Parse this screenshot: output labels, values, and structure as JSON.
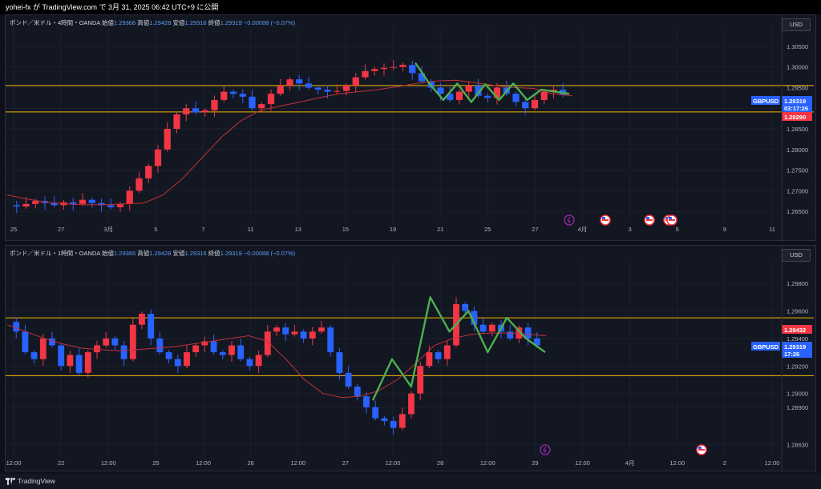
{
  "header": {
    "publish_text": "yohei-fx が TradingView.com で 3月 31, 2025 06:42 UTC+9 に公開"
  },
  "footer": {
    "brand": "TradingView"
  },
  "colors": {
    "bull": "#f23645",
    "bear": "#2962ff",
    "ma": "#c2313a",
    "wave": "#4caf50",
    "hline": "#f5b800",
    "bg": "#131722",
    "grid": "#1c2030"
  },
  "icons": [
    "lightning-icon",
    "us-flag-icon",
    "tradingview-logo-icon"
  ],
  "chart_data": [
    {
      "type": "candlestick",
      "symbol_line": {
        "name": "ポンド／米ドル・4時間・OANDA",
        "open_label": "始値",
        "open": "1.29366",
        "high_label": "高値",
        "high": "1.29428",
        "low_label": "安値",
        "low": "1.29316",
        "close_label": "終値",
        "close": "1.29319",
        "change": "−0.00088 (−0.07%)"
      },
      "currency_button": "USD",
      "ylim": [
        1.2625,
        1.3075
      ],
      "y_ticks": [
        "1.30500",
        "1.30000",
        "1.29500",
        "1.29000",
        "1.28500",
        "1.28000",
        "1.27500",
        "1.27000",
        "1.26500"
      ],
      "x_ticks": [
        "25",
        "27",
        "3月",
        "5",
        "7",
        "11",
        "13",
        "15",
        "19",
        "21",
        "25",
        "27",
        "4月",
        "3",
        "5",
        "9",
        "11"
      ],
      "horizontal_lines": [
        1.2955,
        1.2891
      ],
      "price_tags": [
        {
          "label": "GBPUSD",
          "value": "1.29319",
          "sub": "03:17:26",
          "color": "#2962ff"
        },
        {
          "label": "",
          "value": "1.29290",
          "color": "#f23645"
        }
      ],
      "ohlc_path": [
        1.2665,
        1.2662,
        1.2668,
        1.2675,
        1.267,
        1.2665,
        1.2672,
        1.2668,
        1.2678,
        1.267,
        1.2665,
        1.266,
        1.2668,
        1.27,
        1.273,
        1.276,
        1.28,
        1.285,
        1.2885,
        1.29,
        1.289,
        1.2895,
        1.292,
        1.294,
        1.2935,
        1.2928,
        1.29,
        1.291,
        1.2935,
        1.2955,
        1.297,
        1.296,
        1.295,
        1.2945,
        1.294,
        1.2942,
        1.2955,
        1.2975,
        1.299,
        1.2995,
        1.2998,
        1.3,
        1.3005,
        1.2985,
        1.2965,
        1.295,
        1.2935,
        1.292,
        1.294,
        1.2955,
        1.293,
        1.2925,
        1.295,
        1.2935,
        1.2915,
        1.29,
        1.292,
        1.294,
        1.2945,
        1.2932
      ],
      "ma": [
        1.269,
        1.268,
        1.2672,
        1.2668,
        1.2666,
        1.2666,
        1.2668,
        1.267,
        1.269,
        1.273,
        1.278,
        1.283,
        1.287,
        1.2895,
        1.2905,
        1.2915,
        1.2925,
        1.2935,
        1.294,
        1.2945,
        1.2952,
        1.296,
        1.2966,
        1.2968,
        1.2962,
        1.2955,
        1.295,
        1.2948,
        1.2935,
        1.293
      ],
      "wave": [
        1.301,
        1.296,
        1.292,
        1.296,
        1.2915,
        1.2958,
        1.292,
        1.296,
        1.292,
        1.2945,
        1.294,
        1.2935
      ],
      "events": [
        "lightning-icon",
        "us-flag-icon",
        "us-flag-icon",
        "us-flag-icon",
        "us-flag-icon"
      ]
    },
    {
      "type": "candlestick",
      "symbol_line": {
        "name": "ポンド／米ドル・1時間・OANDA",
        "open_label": "始値",
        "open": "1.29366",
        "high_label": "高値",
        "high": "1.29428",
        "low_label": "安値",
        "low": "1.29316",
        "close_label": "終値",
        "close": "1.29319",
        "change": "−0.00088 (−0.07%)"
      },
      "currency_button": "USD",
      "ylim": [
        1.2855,
        1.299
      ],
      "y_ticks": [
        "1.29800",
        "1.29600",
        "1.29400",
        "1.29200",
        "1.29000",
        "1.28900",
        "1.28630"
      ],
      "x_ticks": [
        "12:00",
        "22",
        "12:00",
        "25",
        "12:00",
        "26",
        "12:00",
        "27",
        "12:00",
        "28",
        "12:00",
        "29",
        "12:00",
        "4月",
        "12:00",
        "2",
        "12:00"
      ],
      "horizontal_lines": [
        1.2955,
        1.2913
      ],
      "price_tags": [
        {
          "label": "",
          "value": "1.29432",
          "color": "#f23645"
        },
        {
          "label": "GBPUSD",
          "value": "1.29319",
          "sub": "17:26",
          "color": "#2962ff"
        }
      ],
      "ohlc_path": [
        1.2952,
        1.2945,
        1.293,
        1.2925,
        1.294,
        1.2935,
        1.292,
        1.2928,
        1.2915,
        1.293,
        1.2935,
        1.294,
        1.2935,
        1.2925,
        1.295,
        1.2958,
        1.294,
        1.293,
        1.2925,
        1.292,
        1.293,
        1.2935,
        1.2938,
        1.293,
        1.2928,
        1.2935,
        1.2925,
        1.292,
        1.2928,
        1.2945,
        1.2948,
        1.2943,
        1.2945,
        1.294,
        1.2945,
        1.2948,
        1.293,
        1.2915,
        1.2905,
        1.2898,
        1.289,
        1.2882,
        1.288,
        1.2875,
        1.2885,
        1.29,
        1.292,
        1.293,
        1.2925,
        1.2935,
        1.2965,
        1.296,
        1.295,
        1.2945,
        1.295,
        1.2945,
        1.294,
        1.2948,
        1.294,
        1.2935
      ],
      "ma": [
        1.295,
        1.2945,
        1.294,
        1.2936,
        1.2933,
        1.2932,
        1.2931,
        1.2932,
        1.2933,
        1.2934,
        1.2936,
        1.2938,
        1.294,
        1.2942,
        1.2938,
        1.2925,
        1.291,
        1.29,
        1.2897,
        1.2898,
        1.2902,
        1.291,
        1.2922,
        1.2935,
        1.294,
        1.2943,
        1.2944,
        1.2944,
        1.2943,
        1.2942
      ],
      "wave": [
        1.2895,
        1.2925,
        1.2905,
        1.297,
        1.2945,
        1.296,
        1.293,
        1.2955,
        1.294,
        1.293
      ],
      "events": [
        "lightning-icon",
        "us-flag-icon"
      ]
    }
  ]
}
